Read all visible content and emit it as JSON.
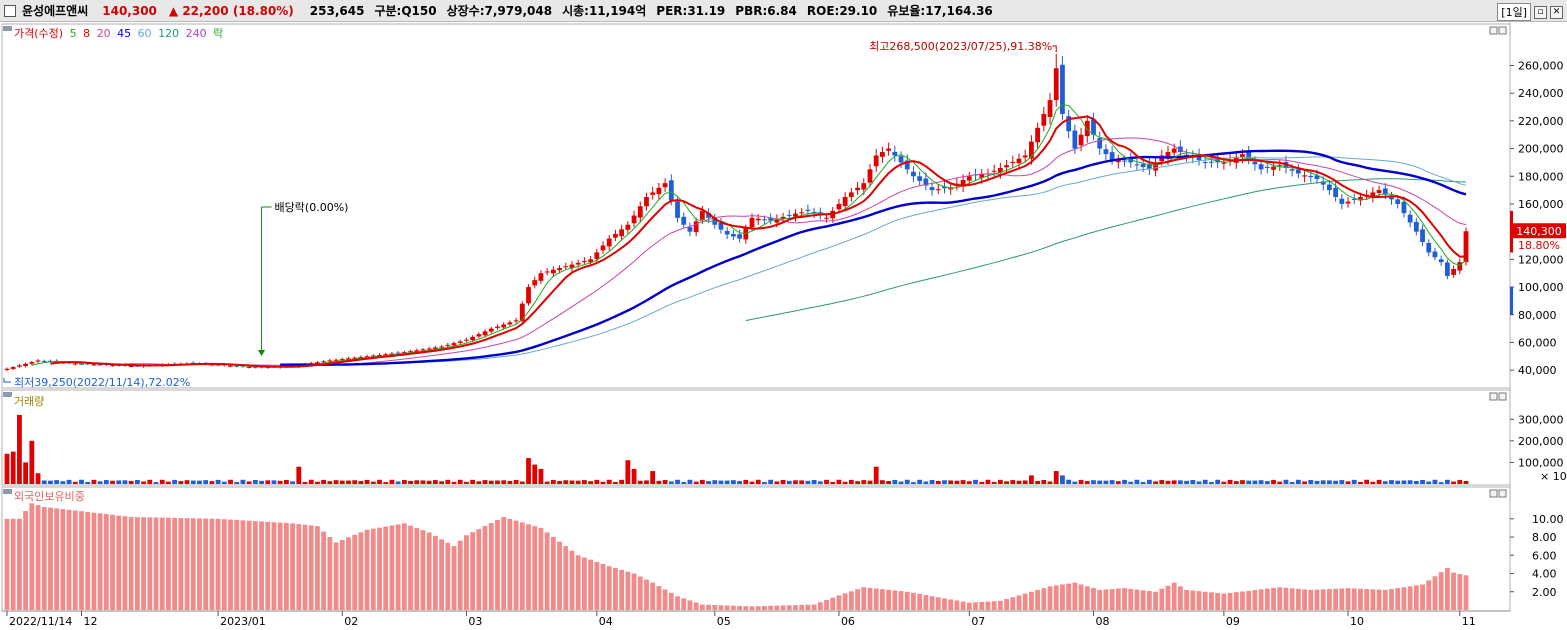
{
  "header": {
    "name": "윤성에프앤씨",
    "price": "140,300",
    "change_arrow": "▲",
    "change": "22,200",
    "change_pct": "(18.80%)",
    "volume": "253,645",
    "market": "구분:Q150",
    "shares": "상장수:7,979,048",
    "market_cap": "시총:11,194억",
    "per": "PER:31.19",
    "pbr": "PBR:6.84",
    "roe": "ROE:29.10",
    "float": "유보율:17,164.36",
    "period": "[1일]"
  },
  "colors": {
    "up": "#e00000",
    "down": "#1f5fd6",
    "ma5": "#22aa22",
    "ma8": "#e00000",
    "ma20": "#cc44aa",
    "ma45": "#0000cc",
    "ma60": "#66aacc",
    "ma120": "#2a9a6a",
    "foreign": "#f28a8a"
  },
  "price_panel": {
    "legend": {
      "price": "가격(수정)",
      "ma5": "5",
      "ma8": "8",
      "ma20": "20",
      "ma45": "45",
      "ma60": "60",
      "ma120": "120",
      "ma240": "240",
      "fall": "락"
    },
    "high_annotation": "최고268,500(2023/07/25),91.38%",
    "low_annotation": "최저39,250(2022/11/14),72.02%",
    "dividend_annotation": "배당락(0.00%)",
    "last_price_tag": "140,300",
    "last_pct_tag": "18.80%"
  },
  "volume_panel": {
    "legend": "거래량",
    "unit": "× 10"
  },
  "foreign_panel": {
    "legend": "외국인보유비중"
  },
  "chart_data": [
    {
      "type": "line",
      "title": "가격(수정)",
      "y_ticks": [
        40000,
        60000,
        80000,
        100000,
        120000,
        140000,
        160000,
        180000,
        200000,
        220000,
        240000,
        260000
      ],
      "y_tick_labels": [
        "40,000",
        "60,000",
        "80,000",
        "100,000",
        "120,000",
        "140,000",
        "160,000",
        "180,000",
        "200,000",
        "220,000",
        "240,000",
        "260,000"
      ],
      "ylim": [
        30000,
        282000
      ],
      "x_tick_labels": [
        "2022/11/14",
        "12",
        "2023/01",
        "02",
        "03",
        "04",
        "05",
        "06",
        "07",
        "08",
        "09",
        "10",
        "11"
      ],
      "x_tick_index": [
        0,
        12,
        34,
        54,
        74,
        95,
        114,
        134,
        155,
        175,
        196,
        216,
        234
      ],
      "close_anchors": [
        [
          0,
          41000
        ],
        [
          5,
          47000
        ],
        [
          10,
          45000
        ],
        [
          20,
          43000
        ],
        [
          30,
          45000
        ],
        [
          40,
          42000
        ],
        [
          46,
          43000
        ],
        [
          52,
          47000
        ],
        [
          58,
          50000
        ],
        [
          64,
          53000
        ],
        [
          70,
          57000
        ],
        [
          74,
          62000
        ],
        [
          78,
          70000
        ],
        [
          82,
          76000
        ],
        [
          84,
          100000
        ],
        [
          86,
          110000
        ],
        [
          90,
          115000
        ],
        [
          94,
          120000
        ],
        [
          97,
          135000
        ],
        [
          100,
          145000
        ],
        [
          103,
          165000
        ],
        [
          106,
          175000
        ],
        [
          108,
          150000
        ],
        [
          110,
          140000
        ],
        [
          112,
          155000
        ],
        [
          114,
          145000
        ],
        [
          116,
          138000
        ],
        [
          118,
          135000
        ],
        [
          120,
          150000
        ],
        [
          123,
          148000
        ],
        [
          126,
          152000
        ],
        [
          129,
          155000
        ],
        [
          132,
          150000
        ],
        [
          135,
          165000
        ],
        [
          138,
          175000
        ],
        [
          140,
          195000
        ],
        [
          142,
          200000
        ],
        [
          144,
          190000
        ],
        [
          146,
          180000
        ],
        [
          149,
          170000
        ],
        [
          152,
          172000
        ],
        [
          155,
          180000
        ],
        [
          158,
          182000
        ],
        [
          161,
          188000
        ],
        [
          164,
          195000
        ],
        [
          166,
          215000
        ],
        [
          168,
          235000
        ],
        [
          169,
          258000
        ],
        [
          170,
          225000
        ],
        [
          172,
          200000
        ],
        [
          174,
          220000
        ],
        [
          176,
          200000
        ],
        [
          178,
          192000
        ],
        [
          181,
          190000
        ],
        [
          184,
          185000
        ],
        [
          186,
          195000
        ],
        [
          188,
          200000
        ],
        [
          190,
          195000
        ],
        [
          193,
          190000
        ],
        [
          196,
          190000
        ],
        [
          199,
          196000
        ],
        [
          202,
          185000
        ],
        [
          205,
          188000
        ],
        [
          208,
          182000
        ],
        [
          211,
          178000
        ],
        [
          213,
          170000
        ],
        [
          215,
          160000
        ],
        [
          218,
          165000
        ],
        [
          221,
          170000
        ],
        [
          224,
          160000
        ],
        [
          227,
          140000
        ],
        [
          229,
          125000
        ],
        [
          231,
          118000
        ],
        [
          232,
          108000
        ],
        [
          234,
          118000
        ],
        [
          235,
          140300
        ]
      ],
      "series": [
        {
          "name": "5",
          "type": "moving_average"
        },
        {
          "name": "8",
          "type": "moving_average"
        },
        {
          "name": "20",
          "type": "moving_average"
        },
        {
          "name": "45",
          "type": "moving_average"
        },
        {
          "name": "60",
          "type": "moving_average"
        },
        {
          "name": "120",
          "type": "moving_average"
        }
      ],
      "max": {
        "value": 268500,
        "date": "2023/07/25",
        "index": 169
      },
      "min": {
        "value": 39250,
        "date": "2022/11/14",
        "index": 0
      },
      "last": 140300,
      "grid": false
    },
    {
      "type": "bar",
      "title": "거래량",
      "y_ticks": [
        100000,
        200000,
        300000
      ],
      "y_tick_labels": [
        "100,000",
        "200,000",
        "300,000"
      ],
      "ylim": [
        0,
        380000
      ],
      "spikes": [
        [
          0,
          140000
        ],
        [
          1,
          150000
        ],
        [
          2,
          320000
        ],
        [
          3,
          100000
        ],
        [
          4,
          200000
        ],
        [
          5,
          50000
        ],
        [
          47,
          80000
        ],
        [
          84,
          120000
        ],
        [
          85,
          90000
        ],
        [
          86,
          70000
        ],
        [
          100,
          110000
        ],
        [
          101,
          70000
        ],
        [
          104,
          60000
        ],
        [
          140,
          80000
        ],
        [
          165,
          40000
        ],
        [
          169,
          60000
        ],
        [
          170,
          40000
        ]
      ],
      "base_level": 14000
    },
    {
      "type": "bar",
      "title": "외국인보유비중",
      "y_ticks": [
        2,
        4,
        6,
        8,
        10
      ],
      "y_tick_labels": [
        "2.00",
        "4.00",
        "6.00",
        "8.00",
        "10.00"
      ],
      "ylim": [
        0,
        12.5
      ],
      "value_anchors": [
        [
          0,
          10
        ],
        [
          2,
          10
        ],
        [
          4,
          11.7
        ],
        [
          6,
          11.3
        ],
        [
          20,
          10.2
        ],
        [
          34,
          10
        ],
        [
          46,
          9.5
        ],
        [
          50,
          9.2
        ],
        [
          53,
          7.4
        ],
        [
          58,
          8.8
        ],
        [
          64,
          9.5
        ],
        [
          68,
          8.5
        ],
        [
          72,
          7
        ],
        [
          74,
          8.2
        ],
        [
          80,
          10.2
        ],
        [
          86,
          9
        ],
        [
          92,
          6
        ],
        [
          97,
          4.8
        ],
        [
          101,
          4
        ],
        [
          104,
          3
        ],
        [
          108,
          1.5
        ],
        [
          112,
          0.6
        ],
        [
          120,
          0.4
        ],
        [
          130,
          0.6
        ],
        [
          134,
          1.6
        ],
        [
          138,
          2.5
        ],
        [
          145,
          2
        ],
        [
          155,
          0.8
        ],
        [
          160,
          1
        ],
        [
          164,
          1.8
        ],
        [
          168,
          2.6
        ],
        [
          172,
          3
        ],
        [
          176,
          2.2
        ],
        [
          180,
          2.4
        ],
        [
          185,
          2
        ],
        [
          188,
          3
        ],
        [
          190,
          2.2
        ],
        [
          196,
          1.8
        ],
        [
          200,
          2.1
        ],
        [
          205,
          2.5
        ],
        [
          210,
          2.2
        ],
        [
          216,
          2.4
        ],
        [
          222,
          2.2
        ],
        [
          228,
          2.8
        ],
        [
          232,
          4.6
        ],
        [
          233,
          4.1
        ],
        [
          235,
          3.8
        ]
      ]
    }
  ]
}
